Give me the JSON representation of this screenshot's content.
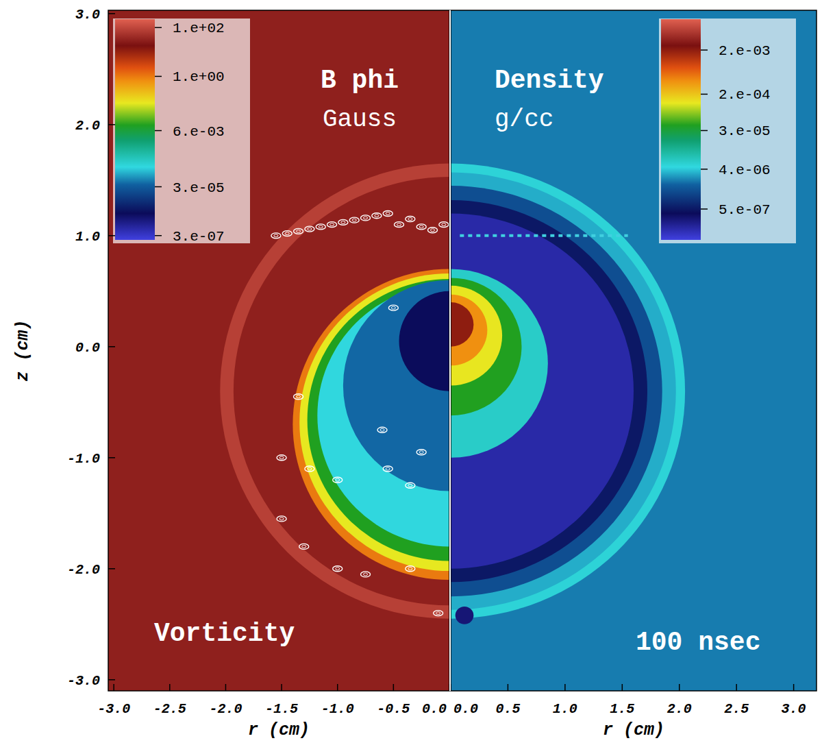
{
  "chart_data": [
    {
      "type": "heatmap",
      "title": "B phi",
      "subtitle": "Gauss",
      "annotation": "Vorticity",
      "xlabel": "r (cm)",
      "ylabel": "z (cm)",
      "xlim": [
        -3.05,
        0
      ],
      "ylim": [
        -3.1,
        3.03
      ],
      "xticks": [
        {
          "value": -3,
          "label": "-3.0"
        },
        -2.5,
        {
          "value": -2,
          "label": "-2.0"
        },
        -1.5,
        {
          "value": -1,
          "label": "-1.0"
        },
        -0.5,
        {
          "value": 0,
          "label": "0.0"
        }
      ],
      "yticks": [
        {
          "value": -3,
          "label": "-3.0"
        },
        {
          "value": -2,
          "label": "-2.0"
        },
        {
          "value": -1,
          "label": "-1.0"
        },
        {
          "value": 0,
          "label": "0.0"
        },
        {
          "value": 1,
          "label": "1.0"
        },
        {
          "value": 2,
          "label": "2.0"
        },
        {
          "value": 3,
          "label": "3.0"
        }
      ],
      "colorbar": {
        "log": true,
        "range": [
          2e-07,
          220
        ],
        "ticks": [
          {
            "value": 100,
            "label": "1.e+02"
          },
          {
            "value": 1,
            "label": "1.e+00"
          },
          {
            "value": 0.006,
            "label": "6.e-03"
          },
          {
            "value": 3e-05,
            "label": "3.e-05"
          },
          {
            "value": 3e-07,
            "label": "3.e-07"
          }
        ]
      },
      "background": 30,
      "regions": [
        {
          "center": [
            0,
            -0.4
          ],
          "radius": 2.05,
          "value": 80
        },
        {
          "center": [
            0,
            -0.4
          ],
          "radius": 1.93,
          "value": 30
        },
        {
          "center": [
            0,
            -0.7
          ],
          "radius": 1.4,
          "value": 1
        },
        {
          "center": [
            0,
            -0.68
          ],
          "radius": 1.34,
          "value": 0.08
        },
        {
          "center": [
            0,
            -0.66
          ],
          "radius": 1.27,
          "value": 0.01
        },
        {
          "center": [
            0,
            -0.62
          ],
          "radius": 1.18,
          "value": 0.0002
        },
        {
          "center": [
            0,
            -0.35
          ],
          "radius": 0.95,
          "value": 4e-05
        },
        {
          "center": [
            0,
            0.05
          ],
          "radius": 0.45,
          "value": 2.5e-06
        }
      ],
      "vorticity_contours": [
        [
          -1.55,
          1.0
        ],
        [
          -1.45,
          1.02
        ],
        [
          -1.35,
          1.04
        ],
        [
          -1.25,
          1.06
        ],
        [
          -1.15,
          1.08
        ],
        [
          -1.05,
          1.1
        ],
        [
          -0.95,
          1.12
        ],
        [
          -0.85,
          1.14
        ],
        [
          -0.75,
          1.16
        ],
        [
          -0.65,
          1.18
        ],
        [
          -0.55,
          1.2
        ],
        [
          -0.45,
          1.1
        ],
        [
          -0.35,
          1.15
        ],
        [
          -0.25,
          1.08
        ],
        [
          -0.15,
          1.05
        ],
        [
          -0.05,
          1.1
        ],
        [
          -1.35,
          -0.45
        ],
        [
          -1.5,
          -1.0
        ],
        [
          -1.25,
          -1.1
        ],
        [
          -1.0,
          -1.2
        ],
        [
          -1.5,
          -1.55
        ],
        [
          -1.3,
          -1.8
        ],
        [
          -1.0,
          -2.0
        ],
        [
          -0.75,
          -2.05
        ],
        [
          -0.35,
          -2.0
        ],
        [
          -0.1,
          -2.4
        ],
        [
          -0.55,
          -1.1
        ],
        [
          -0.35,
          -1.25
        ],
        [
          -0.6,
          -0.75
        ],
        [
          -0.25,
          -0.95
        ],
        [
          -0.5,
          0.35
        ]
      ]
    },
    {
      "type": "heatmap",
      "title": "Density",
      "subtitle": "g/cc",
      "annotation": "100 nsec",
      "xlabel": "r (cm)",
      "tick_labels": "x",
      "xlim": [
        0,
        3.2
      ],
      "ylim": [
        -3.1,
        3.03
      ],
      "xticks": [
        {
          "value": 0,
          "label": "0.0"
        },
        0.5,
        {
          "value": 1,
          "label": "1.0"
        },
        1.5,
        {
          "value": 2,
          "label": "2.0"
        },
        2.5,
        {
          "value": 3,
          "label": "3.0"
        }
      ],
      "colorbar": {
        "log": true,
        "range": [
          1e-07,
          0.01
        ],
        "ticks": [
          {
            "value": 0.002,
            "label": "2.e-03"
          },
          {
            "value": 0.0002,
            "label": "2.e-04"
          },
          {
            "value": 3e-05,
            "label": "3.e-05"
          },
          {
            "value": 4e-06,
            "label": "4.e-06"
          },
          {
            "value": 5e-07,
            "label": "5.e-07"
          }
        ]
      },
      "background": 2.2e-06,
      "regions": [
        {
          "center": [
            0,
            -0.4
          ],
          "radius": 2.05,
          "value": 5e-06
        },
        {
          "center": [
            0,
            -0.4
          ],
          "radius": 1.97,
          "value": 3.2e-06
        },
        {
          "center": [
            0,
            -0.4
          ],
          "radius": 1.85,
          "value": 1.3e-06
        },
        {
          "center": [
            0,
            -0.4
          ],
          "radius": 1.72,
          "value": 5e-07
        },
        {
          "center": [
            0,
            -0.4
          ],
          "radius": 1.6,
          "value": 1.8e-07
        },
        {
          "center": [
            0,
            -0.15
          ],
          "radius": 0.85,
          "value": 6e-06
        },
        {
          "center": [
            0,
            0.0
          ],
          "radius": 0.62,
          "value": 4e-05
        },
        {
          "center": [
            0,
            0.1
          ],
          "radius": 0.45,
          "value": 0.00013
        },
        {
          "center": [
            0,
            0.15
          ],
          "radius": 0.32,
          "value": 0.0004
        },
        {
          "center": [
            0,
            0.2
          ],
          "radius": 0.2,
          "value": 0.002
        },
        {
          "center": [
            0.12,
            -2.42
          ],
          "radius": 0.08,
          "value": 3e-07
        }
      ],
      "plate": {
        "r": [
          0.08,
          1.55
        ],
        "z": 1.0
      }
    }
  ]
}
